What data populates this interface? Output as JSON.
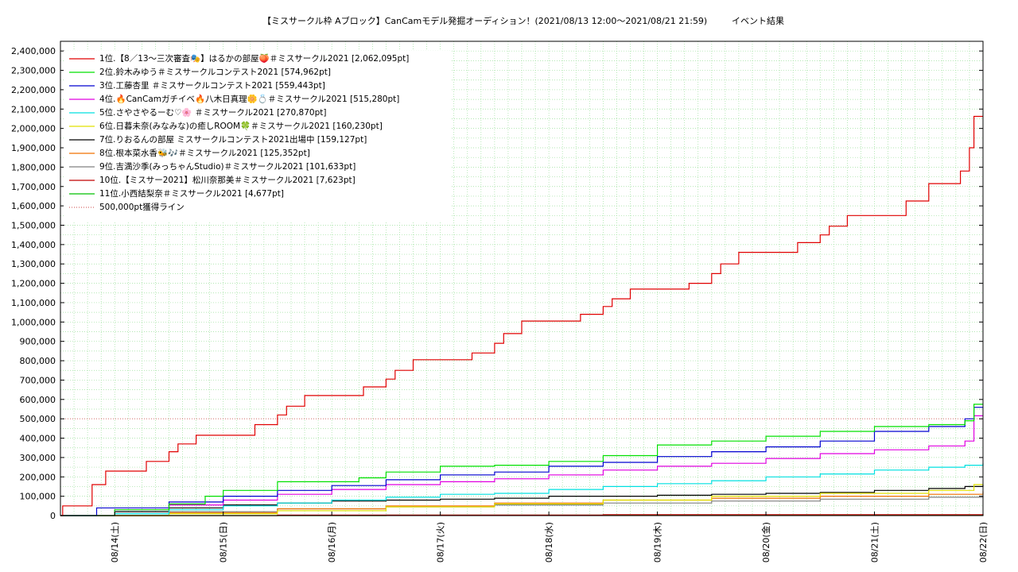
{
  "chart_data": {
    "type": "line",
    "title": "【ミスサークル枠 Aブロック】CanCamモデル発掘オーディション！(2021/08/13 12:00〜2021/08/21 21:59)",
    "title_suffix": "イベント結果",
    "xlabel": "",
    "ylabel": "",
    "ylim": [
      0,
      2450000
    ],
    "y_ticks": [
      0,
      100000,
      200000,
      300000,
      400000,
      500000,
      600000,
      700000,
      800000,
      900000,
      1000000,
      1100000,
      1200000,
      1300000,
      1400000,
      1500000,
      1600000,
      1700000,
      1800000,
      1900000,
      2000000,
      2100000,
      2200000,
      2300000,
      2400000
    ],
    "y_tick_labels": [
      "0",
      "100,000",
      "200,000",
      "300,000",
      "400,000",
      "500,000",
      "600,000",
      "700,000",
      "800,000",
      "900,000",
      "1,000,000",
      "1,100,000",
      "1,200,000",
      "1,300,000",
      "1,400,000",
      "1,500,000",
      "1,600,000",
      "1,700,000",
      "1,800,000",
      "1,900,000",
      "2,000,000",
      "2,100,000",
      "2,200,000",
      "2,300,000",
      "2,400,000"
    ],
    "xlim": [
      "2021-08-13 12:00",
      "2021-08-22 00:00"
    ],
    "x_ticks": [
      "2021-08-14",
      "2021-08-15",
      "2021-08-16",
      "2021-08-17",
      "2021-08-18",
      "2021-08-19",
      "2021-08-20",
      "2021-08-21",
      "2021-08-22"
    ],
    "x_tick_labels": [
      "08/14(土)",
      "08/15(日)",
      "08/16(月)",
      "08/17(火)",
      "08/18(水)",
      "08/19(木)",
      "08/20(金)",
      "08/21(土)",
      "08/22(日)"
    ],
    "grid": true,
    "legend_position": "top-left",
    "reference_line": {
      "name": "500,000pt獲得ライン",
      "value": 500000,
      "color": "#d66a6a",
      "style": "dotted"
    },
    "series": [
      {
        "name": "1位.【8／13〜三次審査🎭】はるかの部屋🍑＃ミスサークル2021 [2,062,095pt]",
        "color": "#e00000",
        "points": [
          [
            "2021-08-13 12:00",
            0
          ],
          [
            "2021-08-13 12:30",
            50000
          ],
          [
            "2021-08-13 18:00",
            50000
          ],
          [
            "2021-08-13 19:00",
            160000
          ],
          [
            "2021-08-13 22:00",
            230000
          ],
          [
            "2021-08-14 02:00",
            230000
          ],
          [
            "2021-08-14 07:00",
            280000
          ],
          [
            "2021-08-14 12:00",
            330000
          ],
          [
            "2021-08-14 14:00",
            370000
          ],
          [
            "2021-08-14 18:00",
            415000
          ],
          [
            "2021-08-15 02:00",
            415000
          ],
          [
            "2021-08-15 07:00",
            470000
          ],
          [
            "2021-08-15 12:00",
            520000
          ],
          [
            "2021-08-15 14:00",
            565000
          ],
          [
            "2021-08-15 18:00",
            620000
          ],
          [
            "2021-08-16 02:00",
            620000
          ],
          [
            "2021-08-16 07:00",
            665000
          ],
          [
            "2021-08-16 12:00",
            705000
          ],
          [
            "2021-08-16 14:00",
            750000
          ],
          [
            "2021-08-16 18:00",
            805000
          ],
          [
            "2021-08-17 02:00",
            805000
          ],
          [
            "2021-08-17 07:00",
            840000
          ],
          [
            "2021-08-17 12:00",
            890000
          ],
          [
            "2021-08-17 14:00",
            940000
          ],
          [
            "2021-08-17 18:00",
            1005000
          ],
          [
            "2021-08-18 02:00",
            1005000
          ],
          [
            "2021-08-18 07:00",
            1040000
          ],
          [
            "2021-08-18 12:00",
            1080000
          ],
          [
            "2021-08-18 14:00",
            1120000
          ],
          [
            "2021-08-18 18:00",
            1170000
          ],
          [
            "2021-08-19 02:00",
            1170000
          ],
          [
            "2021-08-19 07:00",
            1200000
          ],
          [
            "2021-08-19 12:00",
            1250000
          ],
          [
            "2021-08-19 14:00",
            1300000
          ],
          [
            "2021-08-19 18:00",
            1360000
          ],
          [
            "2021-08-20 02:00",
            1360000
          ],
          [
            "2021-08-20 07:00",
            1410000
          ],
          [
            "2021-08-20 12:00",
            1450000
          ],
          [
            "2021-08-20 14:00",
            1495000
          ],
          [
            "2021-08-20 18:00",
            1550000
          ],
          [
            "2021-08-21 02:00",
            1550000
          ],
          [
            "2021-08-21 07:00",
            1625000
          ],
          [
            "2021-08-21 12:00",
            1715000
          ],
          [
            "2021-08-21 19:00",
            1780000
          ],
          [
            "2021-08-21 21:00",
            1900000
          ],
          [
            "2021-08-21 22:00",
            2062095
          ],
          [
            "2021-08-22 00:00",
            2062095
          ]
        ]
      },
      {
        "name": "2位.鈴木みゆう＃ミスサークルコンテスト2021 [574,962pt]",
        "color": "#00e000",
        "points": [
          [
            "2021-08-13 12:00",
            0
          ],
          [
            "2021-08-14 00:00",
            30000
          ],
          [
            "2021-08-14 12:00",
            60000
          ],
          [
            "2021-08-14 20:00",
            100000
          ],
          [
            "2021-08-15 00:00",
            130000
          ],
          [
            "2021-08-15 12:00",
            175000
          ],
          [
            "2021-08-16 06:00",
            195000
          ],
          [
            "2021-08-16 12:00",
            225000
          ],
          [
            "2021-08-17 00:00",
            255000
          ],
          [
            "2021-08-17 12:00",
            260000
          ],
          [
            "2021-08-18 00:00",
            280000
          ],
          [
            "2021-08-18 12:00",
            310000
          ],
          [
            "2021-08-19 00:00",
            365000
          ],
          [
            "2021-08-19 12:00",
            385000
          ],
          [
            "2021-08-20 00:00",
            410000
          ],
          [
            "2021-08-20 12:00",
            435000
          ],
          [
            "2021-08-21 00:00",
            460000
          ],
          [
            "2021-08-21 12:00",
            470000
          ],
          [
            "2021-08-21 20:00",
            490000
          ],
          [
            "2021-08-21 22:00",
            574962
          ],
          [
            "2021-08-22 00:00",
            574962
          ]
        ]
      },
      {
        "name": "3位.工藤杏里 ＃ミスサークルコンテスト2021 [559,443pt]",
        "color": "#0000d0",
        "points": [
          [
            "2021-08-13 12:00",
            0
          ],
          [
            "2021-08-13 20:00",
            40000
          ],
          [
            "2021-08-14 12:00",
            70000
          ],
          [
            "2021-08-15 00:00",
            100000
          ],
          [
            "2021-08-15 12:00",
            130000
          ],
          [
            "2021-08-16 00:00",
            155000
          ],
          [
            "2021-08-16 12:00",
            185000
          ],
          [
            "2021-08-17 00:00",
            210000
          ],
          [
            "2021-08-17 12:00",
            225000
          ],
          [
            "2021-08-18 00:00",
            255000
          ],
          [
            "2021-08-18 12:00",
            275000
          ],
          [
            "2021-08-19 00:00",
            305000
          ],
          [
            "2021-08-19 12:00",
            330000
          ],
          [
            "2021-08-20 00:00",
            355000
          ],
          [
            "2021-08-20 12:00",
            385000
          ],
          [
            "2021-08-21 00:00",
            435000
          ],
          [
            "2021-08-21 12:00",
            460000
          ],
          [
            "2021-08-21 20:00",
            500000
          ],
          [
            "2021-08-21 22:00",
            559443
          ],
          [
            "2021-08-22 00:00",
            559443
          ]
        ]
      },
      {
        "name": "4位.🔥CanCamガチイベ🔥八木日真理🌼💍＃ミスサークル2021 [515,280pt]",
        "color": "#e000e0",
        "points": [
          [
            "2021-08-13 12:00",
            0
          ],
          [
            "2021-08-14 00:00",
            30000
          ],
          [
            "2021-08-14 12:00",
            55000
          ],
          [
            "2021-08-15 00:00",
            80000
          ],
          [
            "2021-08-15 12:00",
            110000
          ],
          [
            "2021-08-16 00:00",
            135000
          ],
          [
            "2021-08-16 12:00",
            160000
          ],
          [
            "2021-08-17 00:00",
            175000
          ],
          [
            "2021-08-17 12:00",
            190000
          ],
          [
            "2021-08-18 00:00",
            210000
          ],
          [
            "2021-08-18 12:00",
            235000
          ],
          [
            "2021-08-19 00:00",
            255000
          ],
          [
            "2021-08-19 12:00",
            270000
          ],
          [
            "2021-08-20 00:00",
            295000
          ],
          [
            "2021-08-20 12:00",
            320000
          ],
          [
            "2021-08-21 00:00",
            340000
          ],
          [
            "2021-08-21 12:00",
            360000
          ],
          [
            "2021-08-21 20:00",
            385000
          ],
          [
            "2021-08-21 22:00",
            515280
          ],
          [
            "2021-08-22 00:00",
            515280
          ]
        ]
      },
      {
        "name": "5位.さやさやるーむ♡🌸 ＃ミスサークル2021 [270,870pt]",
        "color": "#00e0e0",
        "points": [
          [
            "2021-08-13 12:00",
            0
          ],
          [
            "2021-08-14 00:00",
            10000
          ],
          [
            "2021-08-14 12:00",
            30000
          ],
          [
            "2021-08-15 00:00",
            50000
          ],
          [
            "2021-08-15 12:00",
            65000
          ],
          [
            "2021-08-16 00:00",
            80000
          ],
          [
            "2021-08-16 12:00",
            95000
          ],
          [
            "2021-08-17 00:00",
            110000
          ],
          [
            "2021-08-17 12:00",
            115000
          ],
          [
            "2021-08-18 00:00",
            135000
          ],
          [
            "2021-08-18 12:00",
            150000
          ],
          [
            "2021-08-19 00:00",
            165000
          ],
          [
            "2021-08-19 12:00",
            180000
          ],
          [
            "2021-08-20 00:00",
            200000
          ],
          [
            "2021-08-20 12:00",
            215000
          ],
          [
            "2021-08-21 00:00",
            235000
          ],
          [
            "2021-08-21 12:00",
            250000
          ],
          [
            "2021-08-21 20:00",
            260000
          ],
          [
            "2021-08-22 00:00",
            270870
          ]
        ]
      },
      {
        "name": "6位.日暮未奈(みなみな)の癒しROOM🍀＃ミスサークル2021 [160,230pt]",
        "color": "#e0e000",
        "points": [
          [
            "2021-08-13 12:00",
            0
          ],
          [
            "2021-08-14 12:00",
            10000
          ],
          [
            "2021-08-15 12:00",
            25000
          ],
          [
            "2021-08-16 12:00",
            45000
          ],
          [
            "2021-08-17 12:00",
            60000
          ],
          [
            "2021-08-18 12:00",
            80000
          ],
          [
            "2021-08-19 12:00",
            100000
          ],
          [
            "2021-08-20 12:00",
            115000
          ],
          [
            "2021-08-21 12:00",
            130000
          ],
          [
            "2021-08-21 22:00",
            160230
          ],
          [
            "2021-08-22 00:00",
            160230
          ]
        ]
      },
      {
        "name": "7位.りおるんの部屋 ミスサークルコンテスト2021出場中 [159,127pt]",
        "color": "#000000",
        "points": [
          [
            "2021-08-13 12:00",
            0
          ],
          [
            "2021-08-14 00:00",
            20000
          ],
          [
            "2021-08-14 12:00",
            40000
          ],
          [
            "2021-08-15 00:00",
            55000
          ],
          [
            "2021-08-15 12:00",
            65000
          ],
          [
            "2021-08-16 00:00",
            75000
          ],
          [
            "2021-08-16 12:00",
            80000
          ],
          [
            "2021-08-17 00:00",
            85000
          ],
          [
            "2021-08-17 12:00",
            90000
          ],
          [
            "2021-08-18 00:00",
            100000
          ],
          [
            "2021-08-18 12:00",
            100000
          ],
          [
            "2021-08-19 00:00",
            105000
          ],
          [
            "2021-08-19 12:00",
            110000
          ],
          [
            "2021-08-20 00:00",
            115000
          ],
          [
            "2021-08-20 12:00",
            120000
          ],
          [
            "2021-08-21 00:00",
            130000
          ],
          [
            "2021-08-21 12:00",
            140000
          ],
          [
            "2021-08-21 20:00",
            150000
          ],
          [
            "2021-08-22 00:00",
            159127
          ]
        ]
      },
      {
        "name": "8位.根本菜水香🐝🎶＃ミスサークル2021 [125,352pt]",
        "color": "#f07000",
        "points": [
          [
            "2021-08-13 12:00",
            0
          ],
          [
            "2021-08-14 12:00",
            15000
          ],
          [
            "2021-08-15 12:00",
            35000
          ],
          [
            "2021-08-16 12:00",
            50000
          ],
          [
            "2021-08-17 12:00",
            65000
          ],
          [
            "2021-08-18 12:00",
            80000
          ],
          [
            "2021-08-19 12:00",
            90000
          ],
          [
            "2021-08-20 12:00",
            100000
          ],
          [
            "2021-08-21 12:00",
            110000
          ],
          [
            "2021-08-22 00:00",
            125352
          ]
        ]
      },
      {
        "name": "9位.吉満沙季(みっちゃんStudio)＃ミスサークル2021 [101,633pt]",
        "color": "#808080",
        "points": [
          [
            "2021-08-13 12:00",
            0
          ],
          [
            "2021-08-14 12:00",
            20000
          ],
          [
            "2021-08-15 12:00",
            35000
          ],
          [
            "2021-08-16 12:00",
            45000
          ],
          [
            "2021-08-17 12:00",
            55000
          ],
          [
            "2021-08-18 12:00",
            65000
          ],
          [
            "2021-08-19 12:00",
            75000
          ],
          [
            "2021-08-20 12:00",
            85000
          ],
          [
            "2021-08-21 12:00",
            95000
          ],
          [
            "2021-08-22 00:00",
            101633
          ]
        ]
      },
      {
        "name": "10位.【ミスサー2021】松川奈那美＃ミスサークル2021 [7,623pt]",
        "color": "#c00000",
        "points": [
          [
            "2021-08-13 12:00",
            0
          ],
          [
            "2021-08-15 12:00",
            3000
          ],
          [
            "2021-08-18 12:00",
            5000
          ],
          [
            "2021-08-22 00:00",
            7623
          ]
        ]
      },
      {
        "name": "11位.小西結梨奈＃ミスサークル2021 [4,677pt]",
        "color": "#00c000",
        "points": [
          [
            "2021-08-13 12:00",
            0
          ],
          [
            "2021-08-16 12:00",
            2000
          ],
          [
            "2021-08-22 00:00",
            4677
          ]
        ]
      }
    ]
  }
}
